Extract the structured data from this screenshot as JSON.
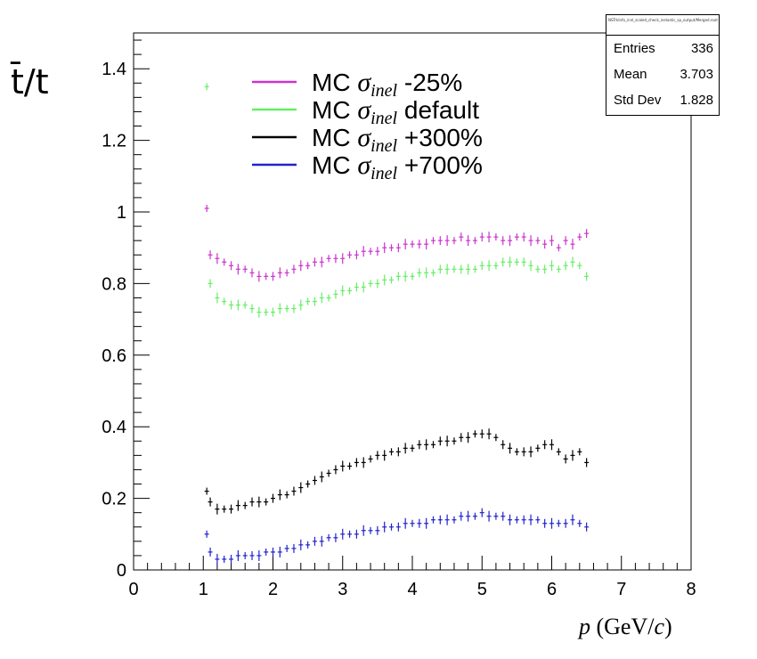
{
  "stats": {
    "title": "NSTrkInfo_innl_scaled_check_inelastic_sp_output/Merged.root",
    "rows": [
      {
        "label": "Entries",
        "value": "336"
      },
      {
        "label": "Mean",
        "value": "3.703"
      },
      {
        "label": "Std Dev",
        "value": "1.828"
      }
    ]
  },
  "legend": {
    "entries": [
      {
        "prefix": "MC ",
        "symbol": "σ",
        "sub": "inel",
        "suffix": " -25%",
        "color": "#cc33cc"
      },
      {
        "prefix": "MC ",
        "symbol": "σ",
        "sub": "inel",
        "suffix": " default",
        "color": "#66ee66"
      },
      {
        "prefix": "MC ",
        "symbol": "σ",
        "sub": "inel",
        "suffix": " +300%",
        "color": "#000000"
      },
      {
        "prefix": "MC ",
        "symbol": "σ",
        "sub": "inel",
        "suffix": " +700%",
        "color": "#2222cc"
      }
    ]
  },
  "chart_data": {
    "type": "scatter",
    "title": "",
    "xlabel": "p (GeV/c)",
    "ylabel": "t̄/t",
    "xlim": [
      0,
      8
    ],
    "ylim": [
      0,
      1.5
    ],
    "x_ticks": [
      "0",
      "1",
      "2",
      "3",
      "4",
      "5",
      "6",
      "7",
      "8"
    ],
    "y_ticks": [
      "0",
      "0.2",
      "0.4",
      "0.6",
      "0.8",
      "1",
      "1.2",
      "1.4"
    ],
    "x": [
      1.05,
      1.1,
      1.2,
      1.3,
      1.4,
      1.5,
      1.6,
      1.7,
      1.8,
      1.9,
      2.0,
      2.1,
      2.2,
      2.3,
      2.4,
      2.5,
      2.6,
      2.7,
      2.8,
      2.9,
      3.0,
      3.1,
      3.2,
      3.3,
      3.4,
      3.5,
      3.6,
      3.7,
      3.8,
      3.9,
      4.0,
      4.1,
      4.2,
      4.3,
      4.4,
      4.5,
      4.6,
      4.7,
      4.8,
      4.9,
      5.0,
      5.1,
      5.2,
      5.3,
      5.4,
      5.5,
      5.6,
      5.7,
      5.8,
      5.9,
      6.0,
      6.1,
      6.2,
      6.3,
      6.4,
      6.5
    ],
    "series": [
      {
        "name": "MC σinel -25%",
        "color": "#cc33cc",
        "values": [
          1.01,
          0.88,
          0.87,
          0.86,
          0.85,
          0.84,
          0.84,
          0.83,
          0.82,
          0.82,
          0.82,
          0.83,
          0.83,
          0.84,
          0.85,
          0.85,
          0.86,
          0.86,
          0.87,
          0.87,
          0.87,
          0.88,
          0.88,
          0.89,
          0.89,
          0.89,
          0.9,
          0.9,
          0.9,
          0.91,
          0.91,
          0.91,
          0.91,
          0.92,
          0.92,
          0.92,
          0.92,
          0.93,
          0.92,
          0.92,
          0.93,
          0.93,
          0.93,
          0.92,
          0.92,
          0.93,
          0.93,
          0.92,
          0.92,
          0.91,
          0.92,
          0.9,
          0.92,
          0.91,
          0.93,
          0.94
        ]
      },
      {
        "name": "MC σinel default",
        "color": "#66ee66",
        "values": [
          1.35,
          0.8,
          0.76,
          0.75,
          0.74,
          0.74,
          0.74,
          0.73,
          0.72,
          0.72,
          0.72,
          0.73,
          0.73,
          0.73,
          0.74,
          0.75,
          0.75,
          0.76,
          0.76,
          0.77,
          0.78,
          0.78,
          0.79,
          0.79,
          0.8,
          0.8,
          0.81,
          0.81,
          0.82,
          0.82,
          0.82,
          0.83,
          0.83,
          0.83,
          0.84,
          0.84,
          0.84,
          0.84,
          0.84,
          0.84,
          0.85,
          0.85,
          0.85,
          0.86,
          0.86,
          0.86,
          0.86,
          0.85,
          0.84,
          0.84,
          0.85,
          0.84,
          0.85,
          0.86,
          0.85,
          0.82
        ]
      },
      {
        "name": "MC σinel +300%",
        "color": "#000000",
        "values": [
          0.22,
          0.19,
          0.17,
          0.17,
          0.17,
          0.18,
          0.18,
          0.19,
          0.19,
          0.19,
          0.2,
          0.21,
          0.21,
          0.22,
          0.23,
          0.24,
          0.25,
          0.26,
          0.27,
          0.28,
          0.29,
          0.29,
          0.3,
          0.3,
          0.31,
          0.32,
          0.32,
          0.33,
          0.33,
          0.34,
          0.34,
          0.35,
          0.35,
          0.35,
          0.36,
          0.36,
          0.36,
          0.37,
          0.37,
          0.38,
          0.38,
          0.38,
          0.37,
          0.35,
          0.34,
          0.33,
          0.33,
          0.33,
          0.34,
          0.35,
          0.35,
          0.33,
          0.31,
          0.32,
          0.33,
          0.3
        ]
      },
      {
        "name": "MC σinel +700%",
        "color": "#2222cc",
        "values": [
          0.1,
          0.05,
          0.03,
          0.03,
          0.03,
          0.04,
          0.04,
          0.04,
          0.04,
          0.05,
          0.05,
          0.05,
          0.06,
          0.06,
          0.07,
          0.07,
          0.08,
          0.08,
          0.09,
          0.09,
          0.1,
          0.1,
          0.1,
          0.11,
          0.11,
          0.11,
          0.12,
          0.12,
          0.12,
          0.13,
          0.13,
          0.13,
          0.13,
          0.14,
          0.14,
          0.14,
          0.14,
          0.15,
          0.15,
          0.15,
          0.16,
          0.15,
          0.15,
          0.15,
          0.14,
          0.14,
          0.14,
          0.14,
          0.14,
          0.13,
          0.13,
          0.13,
          0.13,
          0.14,
          0.13,
          0.12
        ]
      }
    ],
    "grid": false,
    "legend_position": "top-left"
  }
}
